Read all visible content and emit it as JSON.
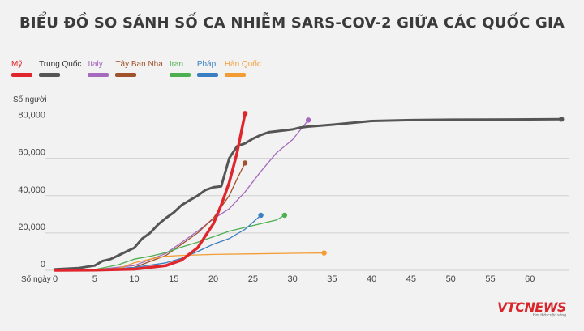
{
  "chart_data": {
    "type": "line",
    "title": "BIỂU ĐỒ SO SÁNH SỐ CA NHIỄM SARS-COV-2 GIỮA CÁC QUỐC GIA",
    "ylabel": "Số người",
    "xlabel": "Số ngày",
    "xlim": [
      0,
      65
    ],
    "ylim": [
      0,
      85000
    ],
    "xticks": [
      0,
      5,
      10,
      15,
      20,
      25,
      30,
      35,
      40,
      45,
      50,
      55,
      60
    ],
    "yticks": [
      0,
      20000,
      40000,
      60000,
      80000
    ],
    "ytick_labels": [
      "0",
      "20,000",
      "40,000",
      "60,000",
      "80,000"
    ],
    "grid": true,
    "legend_position": "top-left",
    "series": [
      {
        "name": "Mỹ",
        "color": "#e0262c",
        "width": 3.5,
        "points": [
          [
            0,
            0
          ],
          [
            5,
            100
          ],
          [
            10,
            600
          ],
          [
            14,
            2500
          ],
          [
            16,
            5500
          ],
          [
            18,
            12000
          ],
          [
            20,
            25000
          ],
          [
            21,
            35000
          ],
          [
            22,
            47000
          ],
          [
            23,
            63000
          ],
          [
            24,
            84000
          ]
        ]
      },
      {
        "name": "Trung Quốc",
        "color": "#555555",
        "width": 3,
        "points": [
          [
            0,
            500
          ],
          [
            3,
            1200
          ],
          [
            5,
            2500
          ],
          [
            6,
            5000
          ],
          [
            7,
            6000
          ],
          [
            8,
            8000
          ],
          [
            9,
            10000
          ],
          [
            10,
            12000
          ],
          [
            11,
            17000
          ],
          [
            12,
            20000
          ],
          [
            13,
            24500
          ],
          [
            14,
            28000
          ],
          [
            15,
            31000
          ],
          [
            16,
            35000
          ],
          [
            17,
            37500
          ],
          [
            18,
            40000
          ],
          [
            19,
            43000
          ],
          [
            20,
            44500
          ],
          [
            21,
            45000
          ],
          [
            22,
            60000
          ],
          [
            23,
            66500
          ],
          [
            24,
            68000
          ],
          [
            25,
            70500
          ],
          [
            26,
            72500
          ],
          [
            27,
            74000
          ],
          [
            28,
            74500
          ],
          [
            29,
            75000
          ],
          [
            30,
            75500
          ],
          [
            31,
            76500
          ],
          [
            32,
            77000
          ],
          [
            35,
            78000
          ],
          [
            40,
            80000
          ],
          [
            45,
            80500
          ],
          [
            50,
            80700
          ],
          [
            55,
            80800
          ],
          [
            60,
            80900
          ],
          [
            64,
            81000
          ]
        ]
      },
      {
        "name": "Italy",
        "color": "#a569bd",
        "width": 1.3,
        "points": [
          [
            0,
            0
          ],
          [
            5,
            300
          ],
          [
            10,
            2500
          ],
          [
            14,
            9000
          ],
          [
            16,
            15000
          ],
          [
            18,
            21000
          ],
          [
            20,
            27500
          ],
          [
            22,
            33000
          ],
          [
            24,
            42000
          ],
          [
            26,
            53000
          ],
          [
            28,
            63000
          ],
          [
            30,
            70000
          ],
          [
            32,
            80500
          ]
        ]
      },
      {
        "name": "Tây Ban Nha",
        "color": "#a0522d",
        "width": 1.3,
        "points": [
          [
            0,
            0
          ],
          [
            5,
            200
          ],
          [
            10,
            1500
          ],
          [
            14,
            8000
          ],
          [
            16,
            14000
          ],
          [
            18,
            20000
          ],
          [
            20,
            28000
          ],
          [
            22,
            40000
          ],
          [
            23,
            49000
          ],
          [
            24,
            57500
          ]
        ]
      },
      {
        "name": "Iran",
        "color": "#4caf50",
        "width": 1.3,
        "points": [
          [
            0,
            0
          ],
          [
            5,
            400
          ],
          [
            8,
            3000
          ],
          [
            10,
            6000
          ],
          [
            12,
            7500
          ],
          [
            14,
            9500
          ],
          [
            16,
            12500
          ],
          [
            18,
            15000
          ],
          [
            20,
            18000
          ],
          [
            22,
            21000
          ],
          [
            24,
            23000
          ],
          [
            26,
            25000
          ],
          [
            28,
            27000
          ],
          [
            29,
            29500
          ]
        ]
      },
      {
        "name": "Pháp",
        "color": "#3a7fc1",
        "width": 1.3,
        "points": [
          [
            0,
            0
          ],
          [
            5,
            200
          ],
          [
            10,
            1500
          ],
          [
            14,
            4000
          ],
          [
            16,
            6500
          ],
          [
            18,
            10000
          ],
          [
            20,
            14000
          ],
          [
            22,
            17000
          ],
          [
            23,
            19500
          ],
          [
            24,
            22000
          ],
          [
            26,
            29500
          ]
        ]
      },
      {
        "name": "Hàn Quốc",
        "color": "#f39c34",
        "width": 1.3,
        "points": [
          [
            0,
            0
          ],
          [
            5,
            200
          ],
          [
            8,
            1000
          ],
          [
            10,
            4000
          ],
          [
            12,
            6000
          ],
          [
            14,
            7500
          ],
          [
            16,
            8000
          ],
          [
            20,
            8500
          ],
          [
            25,
            8800
          ],
          [
            30,
            9100
          ],
          [
            34,
            9300
          ]
        ]
      }
    ]
  },
  "branding": {
    "main": "VTCNEWS",
    "sub": "Hơi thở cuộc sống"
  }
}
